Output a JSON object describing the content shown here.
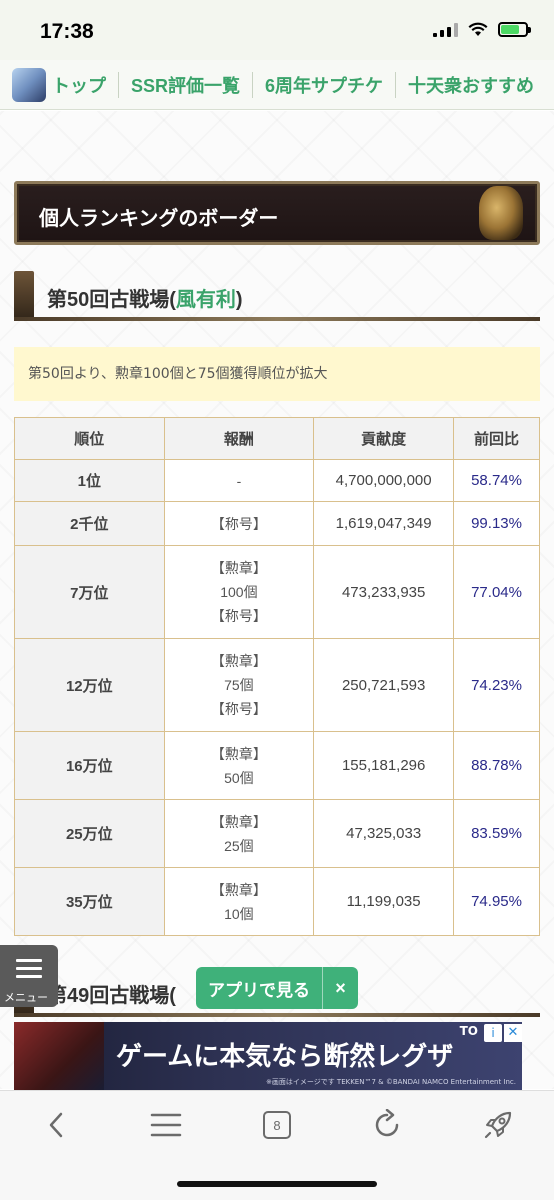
{
  "status_bar": {
    "time": "17:38"
  },
  "nav": {
    "items": [
      {
        "label": "トップ"
      },
      {
        "label": "SSR評価一覧"
      },
      {
        "label": "6周年サプチケ"
      },
      {
        "label": "十天衆おすすめ"
      }
    ]
  },
  "banner": {
    "title": "個人ランキングのボーダー"
  },
  "section": {
    "heading_prefix": "第50回古戦場(",
    "heading_wind": "風有利",
    "heading_suffix": ")",
    "notice": "第50回より、勲章100個と75個獲得順位が拡大"
  },
  "table": {
    "headers": [
      "順位",
      "報酬",
      "貢献度",
      "前回比"
    ],
    "rows": [
      {
        "rank": "1位",
        "reward": [
          "-"
        ],
        "contribution": "4,700,000,000",
        "ratio": "58.74%"
      },
      {
        "rank": "2千位",
        "reward": [
          "【称号】"
        ],
        "contribution": "1,619,047,349",
        "ratio": "99.13%"
      },
      {
        "rank": "7万位",
        "reward": [
          "【勲章】",
          "100個",
          "【称号】"
        ],
        "contribution": "473,233,935",
        "ratio": "77.04%"
      },
      {
        "rank": "12万位",
        "reward": [
          "【勲章】",
          "75個",
          "【称号】"
        ],
        "contribution": "250,721,593",
        "ratio": "74.23%"
      },
      {
        "rank": "16万位",
        "reward": [
          "【勲章】",
          "50個"
        ],
        "contribution": "155,181,296",
        "ratio": "88.78%"
      },
      {
        "rank": "25万位",
        "reward": [
          "【勲章】",
          "25個"
        ],
        "contribution": "47,325,033",
        "ratio": "83.59%"
      },
      {
        "rank": "35万位",
        "reward": [
          "【勲章】",
          "10個"
        ],
        "contribution": "11,199,035",
        "ratio": "74.95%"
      }
    ]
  },
  "next_section": {
    "heading_partial": "第49回古戦場("
  },
  "menu": {
    "label": "メニュー"
  },
  "app_button": {
    "label": "アプリで見る",
    "close": "×"
  },
  "ad": {
    "text": "ゲームに本気なら断然レグザ",
    "brand": "TO",
    "info": "i",
    "close": "✕",
    "small": "※画面はイメージです TEKKEN™7 & ©BANDAI NAMCO Entertainment Inc."
  },
  "toolbar": {
    "tab_count": "8"
  },
  "colors": {
    "accent_green": "#3aa36a",
    "ratio_blue": "#2a2a8a",
    "table_border": "#d9c08d",
    "notice_bg": "#fff8cf"
  }
}
